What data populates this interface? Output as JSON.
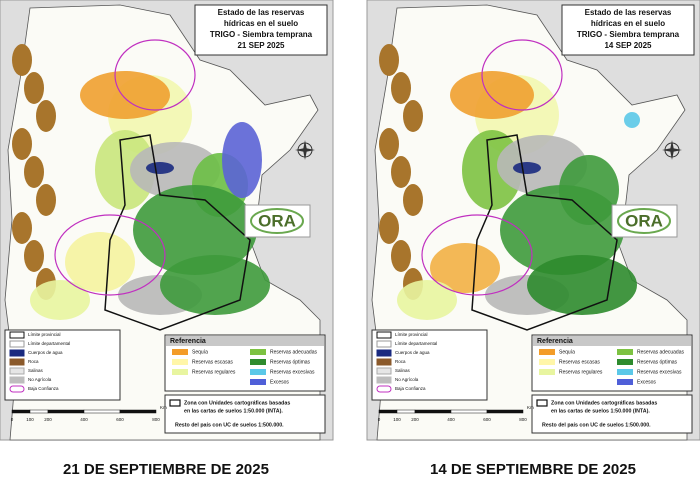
{
  "maps": [
    {
      "title": [
        "Estado de las reservas",
        "hídricas en el suelo",
        "TRIGO - Siembra temprana",
        "21 SEP 2025"
      ],
      "logo": "ORA",
      "boundaries_legend": [
        "Límite provincial",
        "Límite departamental",
        "Cuerpos de agua",
        "Roca",
        "Salinas",
        "No Agrícola",
        "Baja Confianza"
      ],
      "reference": {
        "heading": "Referencia",
        "items": [
          "Sequía",
          "Reservas escasas",
          "Reservas regulares",
          "Reservas adecuadas",
          "Reservas óptimas",
          "Reservas excesivas",
          "Excesos"
        ]
      },
      "note": [
        "Zona con Unidades cartográficas basadas",
        "en las cartas de suelos 1:50.000 (INTA).",
        "Resto del país con UC de suelos 1:500.000."
      ],
      "scale": {
        "labels": [
          0,
          100,
          200,
          400,
          600,
          800
        ],
        "unit": "Km"
      },
      "caption": "21 DE SEPTIEMBRE DE 2025"
    },
    {
      "title": [
        "Estado de las reservas",
        "hídricas en el suelo",
        "TRIGO - Siembra temprana",
        "14 SEP 2025"
      ],
      "logo": "ORA",
      "boundaries_legend": [
        "Límite provincial",
        "Límite departamental",
        "Cuerpos de agua",
        "Roca",
        "Salinas",
        "No Agrícola",
        "Baja Confianza"
      ],
      "reference": {
        "heading": "Referencia",
        "items": [
          "Sequía",
          "Reservas escasas",
          "Reservas regulares",
          "Reservas adecuadas",
          "Reservas óptimas",
          "Reservas excesivas",
          "Excesos"
        ]
      },
      "note": [
        "Zona con Unidades cartográficas basadas",
        "en las cartas de suelos 1:50.000 (INTA).",
        "Resto del país con UC de suelos 1:500.000."
      ],
      "scale": {
        "labels": [
          0,
          100,
          200,
          400,
          600,
          800
        ],
        "unit": "Km"
      },
      "caption": "14 DE SEPTIEMBRE DE 2025"
    }
  ]
}
